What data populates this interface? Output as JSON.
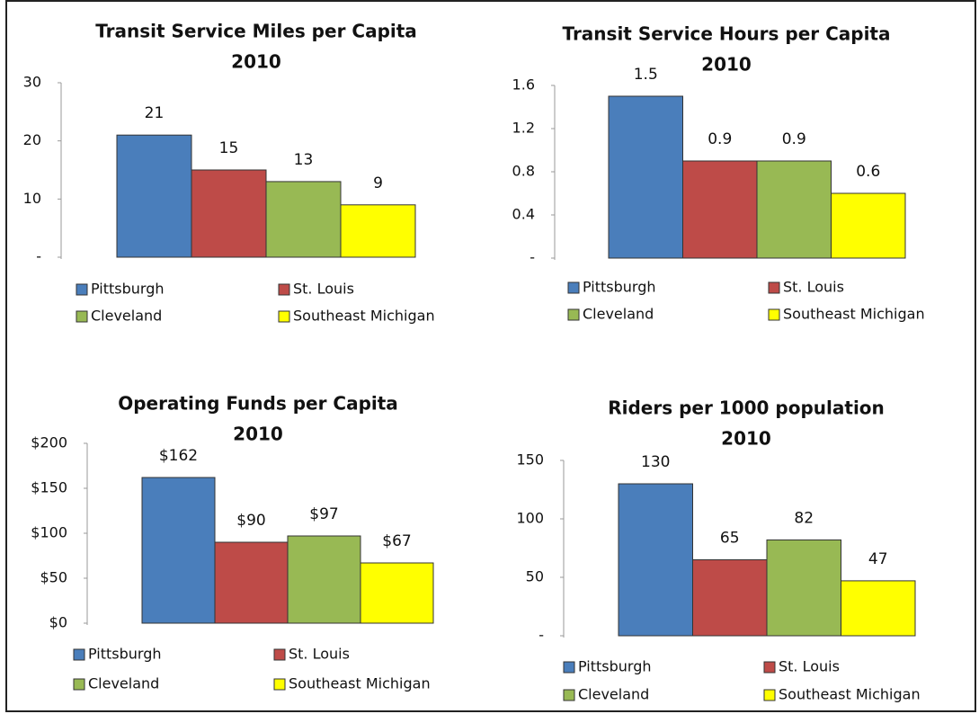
{
  "chart_data": [
    {
      "type": "bar",
      "title": "Transit Service Miles per Capita",
      "subtitle": "2010",
      "categories": [
        null
      ],
      "series": [
        {
          "name": "Pittsburgh",
          "color": "#4a7ebb",
          "values": [
            21
          ]
        },
        {
          "name": "St. Louis",
          "color": "#be4b48",
          "values": [
            15
          ]
        },
        {
          "name": "Cleveland",
          "color": "#98b954",
          "values": [
            13
          ]
        },
        {
          "name": "Southeast Michigan",
          "color": "#ffff00",
          "values": [
            9
          ]
        }
      ],
      "ylim": [
        0,
        30
      ],
      "yticks": [
        {
          "value": 0,
          "label": "-"
        },
        10,
        20,
        30
      ]
    },
    {
      "type": "bar",
      "title": "Transit Service Hours per Capita",
      "subtitle": "2010",
      "categories": [
        null
      ],
      "series": [
        {
          "name": "Pittsburgh",
          "color": "#4a7ebb",
          "values": [
            1.5
          ]
        },
        {
          "name": "St. Louis",
          "color": "#be4b48",
          "values": [
            0.9
          ]
        },
        {
          "name": "Cleveland",
          "color": "#98b954",
          "values": [
            0.9
          ]
        },
        {
          "name": "Southeast Michigan",
          "color": "#ffff00",
          "values": [
            0.6
          ]
        }
      ],
      "ylim": [
        0,
        1.6
      ],
      "yticks": [
        {
          "value": 0,
          "label": "-"
        },
        0.4,
        0.8,
        1.2,
        1.6
      ]
    },
    {
      "type": "bar",
      "title": "Operating Funds per Capita",
      "subtitle": "2010",
      "categories": [
        null
      ],
      "series": [
        {
          "name": "Pittsburgh",
          "color": "#4a7ebb",
          "values": [
            162
          ],
          "value_labels": [
            "$162"
          ]
        },
        {
          "name": "St. Louis",
          "color": "#be4b48",
          "values": [
            90
          ],
          "value_labels": [
            "$90"
          ]
        },
        {
          "name": "Cleveland",
          "color": "#98b954",
          "values": [
            97
          ],
          "value_labels": [
            "$97"
          ]
        },
        {
          "name": "Southeast Michigan",
          "color": "#ffff00",
          "values": [
            67
          ],
          "value_labels": [
            "$67"
          ]
        }
      ],
      "ylim": [
        0,
        200
      ],
      "yticks": [
        {
          "value": 0,
          "label": "$0"
        },
        {
          "value": 50,
          "label": "$50"
        },
        {
          "value": 100,
          "label": "$100"
        },
        {
          "value": 150,
          "label": "$150"
        },
        {
          "value": 200,
          "label": "$200"
        }
      ]
    },
    {
      "type": "bar",
      "title": "Riders per 1000 population",
      "subtitle": "2010",
      "categories": [
        null
      ],
      "series": [
        {
          "name": "Pittsburgh",
          "color": "#4a7ebb",
          "values": [
            130
          ]
        },
        {
          "name": "St. Louis",
          "color": "#be4b48",
          "values": [
            65
          ]
        },
        {
          "name": "Cleveland",
          "color": "#98b954",
          "values": [
            82
          ]
        },
        {
          "name": "Southeast Michigan",
          "color": "#ffff00",
          "values": [
            47
          ]
        }
      ],
      "ylim": [
        0,
        150
      ],
      "yticks": [
        {
          "value": 0,
          "label": "-"
        },
        50,
        100,
        150
      ]
    }
  ]
}
